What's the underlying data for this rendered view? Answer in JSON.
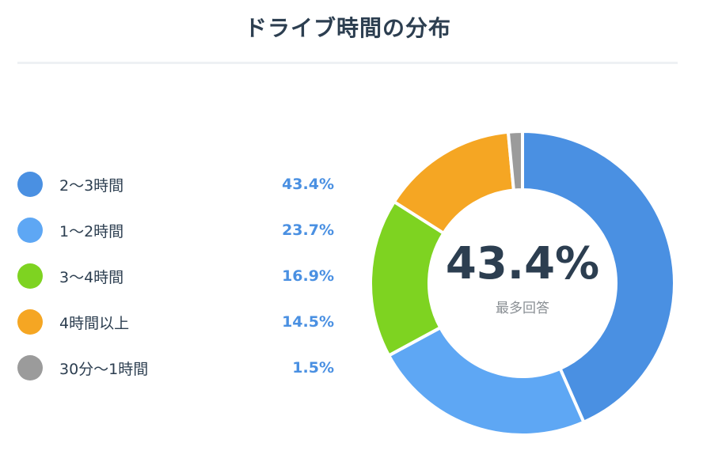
{
  "title": "ドライブ時間の分布",
  "center": {
    "value": "43.4%",
    "label": "最多回答"
  },
  "legend": [
    {
      "label": "2〜3時間",
      "value": "43.4%",
      "color": "#4a90e2"
    },
    {
      "label": "1〜2時間",
      "value": "23.7%",
      "color": "#5ea7f4"
    },
    {
      "label": "3〜4時間",
      "value": "16.9%",
      "color": "#7ed321"
    },
    {
      "label": "4時間以上",
      "value": "14.5%",
      "color": "#f5a623"
    },
    {
      "label": "30分〜1時間",
      "value": "1.5%",
      "color": "#9b9b9b"
    }
  ],
  "value_color": "#4a90e2",
  "chart_data": {
    "type": "pie",
    "title": "ドライブ時間の分布",
    "categories": [
      "2〜3時間",
      "1〜2時間",
      "3〜4時間",
      "4時間以上",
      "30分〜1時間"
    ],
    "values": [
      43.4,
      23.7,
      16.9,
      14.5,
      1.5
    ],
    "unit": "%",
    "colors": [
      "#4a90e2",
      "#5ea7f4",
      "#7ed321",
      "#f5a623",
      "#9b9b9b"
    ],
    "donut": true,
    "legend": "left"
  }
}
